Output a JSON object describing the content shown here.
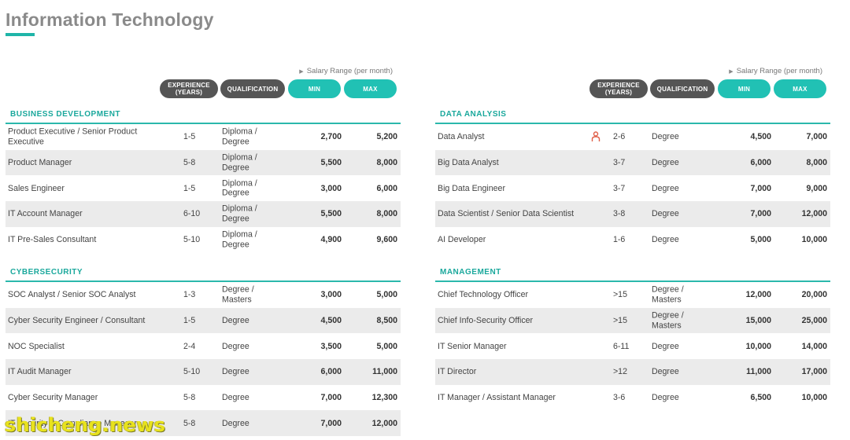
{
  "page": {
    "title": "Information Technology",
    "accent": "#1fb5a8"
  },
  "header": {
    "salary_note": "Salary Range (per month)",
    "experience_line1": "EXPERIENCE",
    "experience_line2": "(YEARS)",
    "qualification": "QUALIFICATION",
    "min": "MIN",
    "max": "MAX"
  },
  "sections": {
    "business_development": {
      "title": "BUSINESS DEVELOPMENT",
      "rows": [
        {
          "title": "Product Executive / Senior Product Executive",
          "experience": "1-5",
          "qualification": "Diploma / Degree",
          "min": "2,700",
          "max": "5,200"
        },
        {
          "title": "Product Manager",
          "experience": "5-8",
          "qualification": "Diploma / Degree",
          "min": "5,500",
          "max": "8,000"
        },
        {
          "title": "Sales Engineer",
          "experience": "1-5",
          "qualification": "Diploma / Degree",
          "min": "3,000",
          "max": "6,000"
        },
        {
          "title": "IT Account Manager",
          "experience": "6-10",
          "qualification": "Diploma / Degree",
          "min": "5,500",
          "max": "8,000"
        },
        {
          "title": "IT Pre-Sales Consultant",
          "experience": "5-10",
          "qualification": "Diploma / Degree",
          "min": "4,900",
          "max": "9,600"
        }
      ]
    },
    "cybersecurity": {
      "title": "CYBERSECURITY",
      "rows": [
        {
          "title": "SOC Analyst / Senior SOC Analyst",
          "experience": "1-3",
          "qualification": "Degree / Masters",
          "min": "3,000",
          "max": "5,000"
        },
        {
          "title": "Cyber Security Engineer / Consultant",
          "experience": "1-5",
          "qualification": "Degree",
          "min": "4,500",
          "max": "8,500"
        },
        {
          "title": "NOC Specialist",
          "experience": "2-4",
          "qualification": "Degree",
          "min": "3,500",
          "max": "5,000"
        },
        {
          "title": "IT Audit Manager",
          "experience": "5-10",
          "qualification": "Degree",
          "min": "6,000",
          "max": "11,000"
        },
        {
          "title": "Cyber Security Manager",
          "experience": "5-8",
          "qualification": "Degree",
          "min": "7,000",
          "max": "12,300"
        },
        {
          "title": "IT Security & Compliance Manager",
          "experience": "5-8",
          "qualification": "Degree",
          "min": "7,000",
          "max": "12,000"
        }
      ]
    },
    "data_analysis": {
      "title": "DATA ANALYSIS",
      "rows": [
        {
          "title": "Data Analyst",
          "experience": "2-6",
          "qualification": "Degree",
          "min": "4,500",
          "max": "7,000"
        },
        {
          "title": "Big Data Analyst",
          "experience": "3-7",
          "qualification": "Degree",
          "min": "6,000",
          "max": "8,000"
        },
        {
          "title": "Big Data Engineer",
          "experience": "3-7",
          "qualification": "Degree",
          "min": "7,000",
          "max": "9,000"
        },
        {
          "title": "Data Scientist / Senior Data Scientist",
          "experience": "3-8",
          "qualification": "Degree",
          "min": "7,000",
          "max": "12,000"
        },
        {
          "title": "AI Developer",
          "experience": "1-6",
          "qualification": "Degree",
          "min": "5,000",
          "max": "10,000"
        }
      ]
    },
    "management": {
      "title": "MANAGEMENT",
      "rows": [
        {
          "title": "Chief Technology Officer",
          "experience": ">15",
          "qualification": "Degree / Masters",
          "min": "12,000",
          "max": "20,000"
        },
        {
          "title": "Chief Info-Security Officer",
          "experience": ">15",
          "qualification": "Degree / Masters",
          "min": "15,000",
          "max": "25,000"
        },
        {
          "title": "IT Senior Manager",
          "experience": "6-11",
          "qualification": "Degree",
          "min": "10,000",
          "max": "14,000"
        },
        {
          "title": "IT Director",
          "experience": ">12",
          "qualification": "Degree",
          "min": "11,000",
          "max": "17,000"
        },
        {
          "title": "IT Manager / Assistant Manager",
          "experience": "3-6",
          "qualification": "Degree",
          "min": "6,500",
          "max": "10,000"
        }
      ]
    }
  },
  "icons": {
    "person_marker": "person-icon",
    "person_color": "#e0604a"
  },
  "watermark": "shicheng.news"
}
